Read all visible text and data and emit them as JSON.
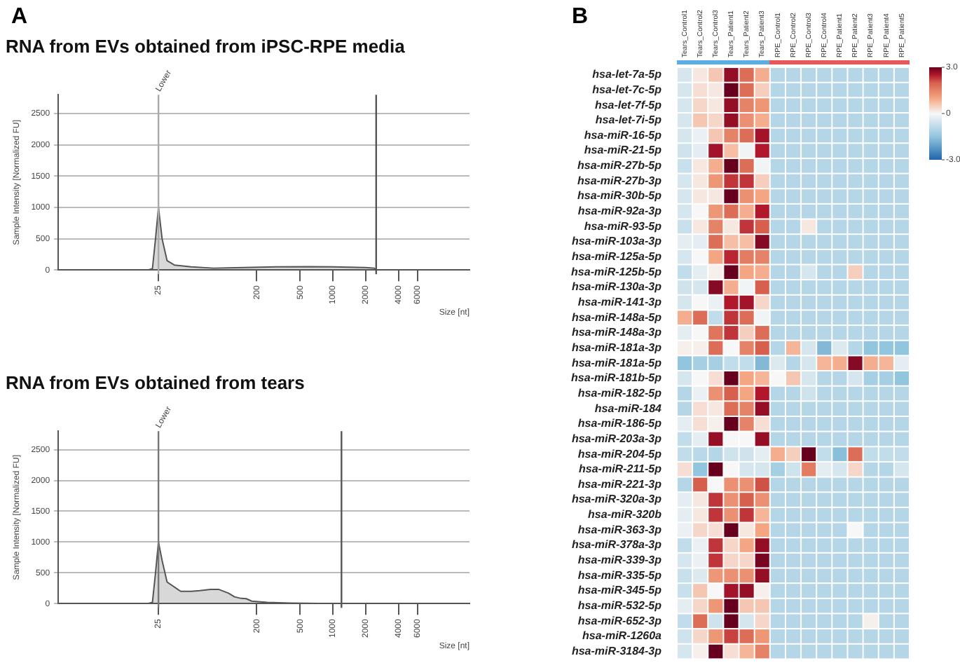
{
  "chart_data": [
    {
      "type": "area",
      "title": "RNA from EVs obtained from iPSC-RPE media",
      "xlabel": "Size [nt]",
      "ylabel": "Sample Intensity [Normalized FU]",
      "annotations": [
        "A"
      ],
      "x": [
        3,
        10,
        20,
        22,
        23.5,
        25,
        27,
        30,
        35,
        50,
        80,
        150,
        300,
        600,
        1000,
        2000,
        2400,
        2500,
        4000,
        18000
      ],
      "series": [
        {
          "color": "#555555",
          "values": [
            0,
            0,
            0,
            20,
            500,
            1000,
            500,
            150,
            80,
            50,
            30,
            40,
            50,
            55,
            50,
            40,
            30,
            0,
            0,
            0
          ]
        }
      ],
      "ref_lines": [
        {
          "axis": "x",
          "value": 25,
          "label": "Lower",
          "color": "#aaaaaa"
        },
        {
          "axis": "x",
          "value": 2500,
          "color": "#555555"
        }
      ],
      "xlim": [
        3,
        18000
      ],
      "xticks": [
        25,
        200,
        500,
        1000,
        2000,
        4000,
        6000
      ],
      "log": "x",
      "ylim": [
        0,
        2800
      ],
      "yticks": [
        0,
        500,
        1000,
        1500,
        2000,
        2500
      ],
      "grid": "y"
    },
    {
      "type": "area",
      "title": "RNA from EVs obtained from tears",
      "xlabel": "Size [nt]",
      "ylabel": "Sample Intensity [Normalized FU]",
      "x": [
        5,
        10,
        20,
        22,
        23.5,
        25,
        27,
        30,
        40,
        50,
        60,
        75,
        90,
        110,
        125,
        140,
        160,
        180,
        250,
        400,
        1000,
        1200,
        18000
      ],
      "series": [
        {
          "color": "#555555",
          "values": [
            0,
            0,
            0,
            20,
            500,
            1000,
            700,
            350,
            200,
            200,
            210,
            230,
            230,
            170,
            110,
            90,
            80,
            40,
            20,
            10,
            0,
            0,
            0
          ]
        }
      ],
      "ref_lines": [
        {
          "axis": "x",
          "value": 25,
          "label": "Lower",
          "color": "#777777"
        },
        {
          "axis": "x",
          "value": 1200,
          "color": "#555555"
        }
      ],
      "xlim": [
        3,
        18000
      ],
      "xticks": [
        25,
        200,
        500,
        1000,
        2000,
        4000,
        6000
      ],
      "log": "x",
      "ylim": [
        0,
        2800
      ],
      "yticks": [
        0,
        500,
        1000,
        1500,
        2000,
        2500
      ],
      "grid": "y"
    },
    {
      "type": "heatmap",
      "annotations": [
        "B"
      ],
      "categories": [
        "Tears_Control1",
        "Tears_Control2",
        "Tears_Control3",
        "Tears_Patient1",
        "Tears_Patient2",
        "Tears_Patient3",
        "RPE_Control1",
        "RPE_Control2",
        "RPE_Control3",
        "RPE_Control4",
        "RPE_Patient1",
        "RPE_Patient2",
        "RPE_Patient3",
        "RPE_Patient4",
        "RPE_Patient5"
      ],
      "y_categories": [
        "hsa-let-7a-5p",
        "hsa-let-7c-5p",
        "hsa-let-7f-5p",
        "hsa-let-7i-5p",
        "hsa-miR-16-5p",
        "hsa-miR-21-5p",
        "hsa-miR-27b-5p",
        "hsa-miR-27b-3p",
        "hsa-miR-30b-5p",
        "hsa-miR-92a-3p",
        "hsa-miR-93-5p",
        "hsa-miR-103a-3p",
        "hsa-miR-125a-5p",
        "hsa-miR-125b-5p",
        "hsa-miR-130a-3p",
        "hsa-miR-141-3p",
        "hsa-miR-148a-5p",
        "hsa-miR-148a-3p",
        "hsa-miR-181a-3p",
        "hsa-miR-181a-5p",
        "hsa-miR-181b-5p",
        "hsa-miR-182-5p",
        "hsa-miR-184",
        "hsa-miR-186-5p",
        "hsa-miR-203a-3p",
        "hsa-miR-204-5p",
        "hsa-miR-211-5p",
        "hsa-miR-221-3p",
        "hsa-miR-320a-3p",
        "hsa-miR-320b",
        "hsa-miR-363-3p",
        "hsa-miR-378a-3p",
        "hsa-miR-339-3p",
        "hsa-miR-335-5p",
        "hsa-miR-345-5p",
        "hsa-miR-532-5p",
        "hsa-miR-652-3p",
        "hsa-miR-1260a",
        "hsa-miR-3184-3p"
      ],
      "cells": [
        [
          -0.5,
          0.2,
          0.6,
          2.7,
          1.8,
          0.9,
          -1,
          -1,
          -1,
          -1,
          -1,
          -1,
          -1,
          -1,
          -1
        ],
        [
          -0.5,
          0.3,
          0.2,
          3,
          1.8,
          0.5,
          -1,
          -1,
          -1,
          -1,
          -1,
          -1,
          -1,
          -1,
          -1
        ],
        [
          -0.5,
          0.4,
          0.2,
          2.7,
          1.5,
          1.2,
          -1,
          -1,
          -1,
          -1,
          -1,
          -1,
          -1,
          -1,
          -1
        ],
        [
          -0.5,
          0.6,
          0.4,
          2.7,
          1.3,
          0.9,
          -1,
          -1,
          -1,
          -1,
          -1,
          -1,
          -1,
          -1,
          -1
        ],
        [
          -0.5,
          -0.2,
          0.6,
          1.5,
          1.8,
          2.6,
          -1,
          -1,
          -1,
          -1,
          -1,
          -1,
          -1,
          -1,
          -1
        ],
        [
          -0.6,
          -0.3,
          2.6,
          0.7,
          -0.1,
          2.5,
          -1,
          -1,
          -1,
          -1,
          -1,
          -1,
          -1,
          -1,
          -1
        ],
        [
          -0.7,
          0.2,
          0.9,
          3,
          1.8,
          -0.1,
          -1,
          -1,
          -1,
          -1,
          -1,
          -1,
          -1,
          -1,
          -1
        ],
        [
          -0.5,
          0.2,
          1.2,
          2.3,
          2.3,
          0.5,
          -1,
          -1,
          -1,
          -1,
          -1,
          -1,
          -1,
          -1,
          -1
        ],
        [
          -0.5,
          0.2,
          0.2,
          3,
          1.3,
          1,
          -1,
          -1,
          -1,
          -1,
          -1,
          -1,
          -1,
          -1,
          -1
        ],
        [
          -0.5,
          0,
          1.2,
          1.8,
          0.9,
          2.5,
          -1,
          -1,
          -1,
          -1,
          -1,
          -1,
          -1,
          -1,
          -1
        ],
        [
          -0.7,
          0.2,
          1.5,
          0.2,
          2.3,
          2,
          -1,
          -1,
          0.2,
          -1,
          -1,
          -1,
          -1,
          -1,
          -1
        ],
        [
          -0.3,
          -0.3,
          1.8,
          0.7,
          0.7,
          2.8,
          -1,
          -1,
          -1,
          -1,
          -1,
          -1,
          -1,
          -1,
          -1
        ],
        [
          -0.5,
          0,
          1,
          2.4,
          1.6,
          1.5,
          -1,
          -1,
          -1,
          -1,
          -1,
          -1,
          -1,
          -1,
          -1
        ],
        [
          -0.8,
          -0.3,
          0.1,
          3,
          1,
          0.9,
          -1,
          -1,
          -0.5,
          -1,
          -1,
          0.5,
          -1,
          -1,
          -1
        ],
        [
          -0.6,
          -0.5,
          2.8,
          0.9,
          -0.1,
          2,
          -1,
          -1,
          -1,
          -1,
          -1,
          -1,
          -1,
          -1,
          -1
        ],
        [
          -0.5,
          0,
          -0.2,
          2.5,
          2.6,
          0.4,
          -1,
          -1,
          -1,
          -1,
          -1,
          -1,
          -1,
          -1,
          -1
        ],
        [
          0.9,
          1.8,
          -0.8,
          2.3,
          1.8,
          -0.1,
          -1,
          -1,
          -1,
          -1,
          -1,
          -1,
          -1,
          -1,
          -1
        ],
        [
          -0.3,
          0,
          1.7,
          2.3,
          0.5,
          1.8,
          -1,
          -1,
          -1,
          -1,
          -1,
          -1,
          -1,
          -1,
          -1
        ],
        [
          0.1,
          0.1,
          1.8,
          0,
          1.5,
          2,
          -1,
          0.8,
          -0.5,
          -1.7,
          -0.4,
          -1,
          -1.5,
          -1.5,
          -1.5
        ],
        [
          -1.5,
          -1.2,
          -1.2,
          -0.8,
          -0.8,
          -1.7,
          -0.4,
          -1,
          -0.5,
          0.8,
          0.9,
          2.8,
          0.9,
          0.8,
          -0.3
        ],
        [
          -0.5,
          0,
          0.3,
          3,
          1,
          0.8,
          0,
          0.6,
          -0.5,
          -1,
          -1,
          -0.5,
          -1.2,
          -1.2,
          -1.5
        ],
        [
          -1,
          -0.2,
          1.3,
          2,
          1,
          2.5,
          -1,
          -1,
          -0.6,
          -1,
          -1,
          -1,
          -1,
          -1,
          -1
        ],
        [
          -1,
          0.3,
          0.2,
          1.8,
          1.5,
          2.7,
          -1,
          -1,
          -1,
          -1,
          -1,
          -1,
          -1,
          -1,
          -1
        ],
        [
          -0.3,
          0.3,
          0.1,
          3,
          1.5,
          0.3,
          -1,
          -1,
          -1,
          -1,
          -1,
          -1,
          -1,
          -1,
          -1
        ],
        [
          -0.8,
          -0.3,
          2.7,
          0,
          0,
          2.7,
          -1,
          -1,
          -1,
          -1,
          -1,
          -1,
          -1,
          -1,
          -1
        ],
        [
          -0.8,
          -0.9,
          -1,
          -0.6,
          -0.6,
          -0.3,
          0.9,
          0.5,
          3,
          -0.8,
          -1.6,
          1.8,
          -0.8,
          -0.8,
          -0.8
        ],
        [
          0.3,
          -1.5,
          3,
          0,
          -0.5,
          -0.5,
          -1.2,
          -0.6,
          1.6,
          -0.3,
          -0.5,
          0.4,
          -1,
          -1,
          -0.5
        ],
        [
          -1,
          2,
          0,
          1.3,
          1.3,
          2.1,
          -1,
          -1,
          -1,
          -1,
          -1,
          -1,
          -1,
          -1,
          -1
        ],
        [
          -0.3,
          0.2,
          2.3,
          1.3,
          2,
          1.3,
          -1,
          -1,
          -1,
          -1,
          -1,
          -1,
          -1,
          -1,
          -1
        ],
        [
          -0.3,
          0.2,
          2.3,
          1.3,
          2.3,
          0.8,
          -1,
          -1,
          -1,
          -1,
          -1,
          -1,
          -1,
          -1,
          -1
        ],
        [
          -0.2,
          0.4,
          0.3,
          3,
          0.2,
          1,
          -1,
          -1,
          -1,
          -1,
          -1,
          0,
          -1,
          -1,
          -1
        ],
        [
          -0.8,
          -0.2,
          2.3,
          0.4,
          1,
          2.7,
          -1,
          -1,
          -1,
          -1,
          -1,
          -1,
          -1,
          -1,
          -1
        ],
        [
          -0.5,
          -0.2,
          2.3,
          0.4,
          0.4,
          2.9,
          -1,
          -1,
          -1,
          -1,
          -1,
          -1,
          -1,
          -1,
          -1
        ],
        [
          -0.7,
          -0.4,
          1.2,
          1.3,
          1.3,
          2.7,
          -1,
          -1,
          -1,
          -1,
          -1,
          -1,
          -1,
          -1,
          -1
        ],
        [
          -0.7,
          0.6,
          0,
          2.6,
          2.7,
          0.1,
          -1,
          -1,
          -1,
          -1,
          -1,
          -1,
          -1,
          -1,
          -1
        ],
        [
          -0.3,
          0.4,
          1.2,
          3,
          0.6,
          0.6,
          -1,
          -1,
          -1,
          -1,
          -1,
          -1,
          -1,
          -1,
          -1
        ],
        [
          -0.8,
          1.8,
          -0.6,
          3,
          -0.5,
          0.4,
          -1,
          -1,
          -1,
          -1,
          -1,
          -1,
          0.1,
          -1,
          -1
        ],
        [
          -0.6,
          0.4,
          1.2,
          2.2,
          1.8,
          1.2,
          -1,
          -1,
          -1,
          -1,
          -1,
          -1,
          -1,
          -1,
          -1
        ],
        [
          -0.5,
          0.1,
          3,
          0.3,
          0.8,
          1.5,
          -1,
          -1,
          -1,
          -1,
          -1,
          -1,
          -1,
          -1,
          -1
        ]
      ],
      "clim": [
        -3,
        3
      ],
      "cticks": [
        {
          "value": 3,
          "label": "3.0"
        },
        0,
        {
          "value": -3,
          "label": "-3.0"
        }
      ]
    }
  ]
}
